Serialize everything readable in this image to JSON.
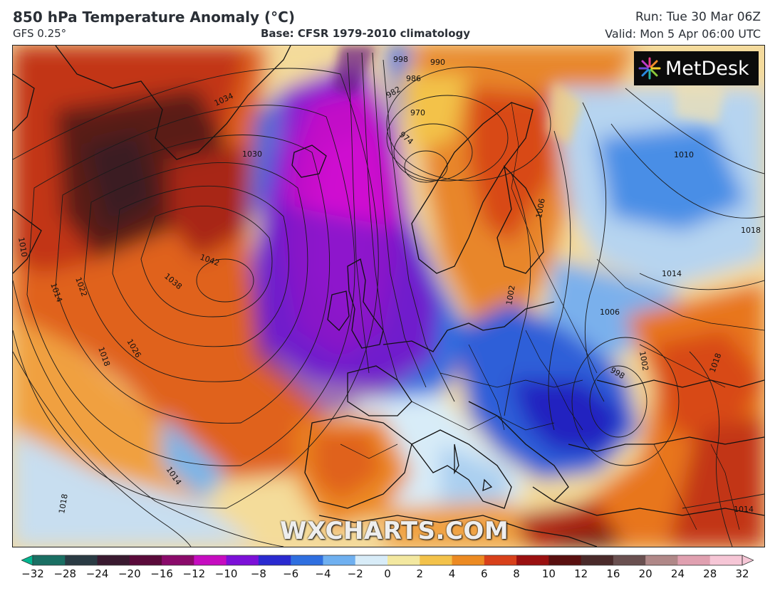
{
  "header": {
    "title": "850 hPa Temperature Anomaly (°C)",
    "subtitle": "GFS 0.25°",
    "base": "Base: CFSR 1979-2010 climatology",
    "run": "Run: Tue 30 Mar 06Z",
    "valid": "Valid: Mon 5 Apr 06:00 UTC"
  },
  "logo": {
    "text": "MetDesk",
    "icon": "metdesk-burst-icon"
  },
  "watermark": "WXCHARTS.COM",
  "colorbar": {
    "ticks": [
      "−32",
      "−28",
      "−24",
      "−20",
      "−16",
      "−12",
      "−10",
      "−8",
      "−6",
      "−4",
      "−2",
      "0",
      "2",
      "4",
      "6",
      "8",
      "10",
      "12",
      "16",
      "20",
      "24",
      "28",
      "32"
    ],
    "colors": [
      "#00b58f",
      "#1a6f63",
      "#2a3b44",
      "#3a1a30",
      "#5a0a3a",
      "#8a0a6a",
      "#c60cc0",
      "#7c10d8",
      "#2a2ad0",
      "#2f6fe0",
      "#6fb0f0",
      "#d8ecf8",
      "#f3e8a0",
      "#f3c24a",
      "#ec8a22",
      "#d8401a",
      "#9a1010",
      "#5a1010",
      "#4a2a2a",
      "#6a5050",
      "#b08888",
      "#e0a0b0",
      "#f6c6d6"
    ]
  },
  "contour_labels": [
    {
      "text": "1030",
      "name": "contour-label-1030-greenland"
    },
    {
      "text": "1034",
      "name": "contour-label-1034"
    },
    {
      "text": "1042",
      "name": "contour-label-1042"
    },
    {
      "text": "1038",
      "name": "contour-label-1038"
    },
    {
      "text": "1026",
      "name": "contour-label-1026"
    },
    {
      "text": "1022",
      "name": "contour-label-1022"
    },
    {
      "text": "1018",
      "name": "contour-label-1018"
    },
    {
      "text": "1014",
      "name": "contour-label-1014-west"
    },
    {
      "text": "1010",
      "name": "contour-label-1010-west"
    },
    {
      "text": "1014",
      "name": "contour-label-1014-sw"
    },
    {
      "text": "1018",
      "name": "contour-label-1018-sw"
    },
    {
      "text": "998",
      "name": "contour-label-998"
    },
    {
      "text": "990",
      "name": "contour-label-990"
    },
    {
      "text": "986",
      "name": "contour-label-986"
    },
    {
      "text": "982",
      "name": "contour-label-982"
    },
    {
      "text": "970",
      "name": "contour-label-970"
    },
    {
      "text": "974",
      "name": "contour-label-974"
    },
    {
      "text": "1010",
      "name": "contour-label-1010-russia"
    },
    {
      "text": "1018",
      "name": "contour-label-1018-east"
    },
    {
      "text": "1014",
      "name": "contour-label-1014-east"
    },
    {
      "text": "1006",
      "name": "contour-label-1006-balkans"
    },
    {
      "text": "1002",
      "name": "contour-label-1002"
    },
    {
      "text": "998",
      "name": "contour-label-998-greece"
    },
    {
      "text": "1018",
      "name": "contour-label-1018-turkey"
    },
    {
      "text": "1014",
      "name": "contour-label-1014-se"
    },
    {
      "text": "1006",
      "name": "contour-label-1006-baltic"
    },
    {
      "text": "1002",
      "name": "contour-label-1002-poland"
    }
  ]
}
